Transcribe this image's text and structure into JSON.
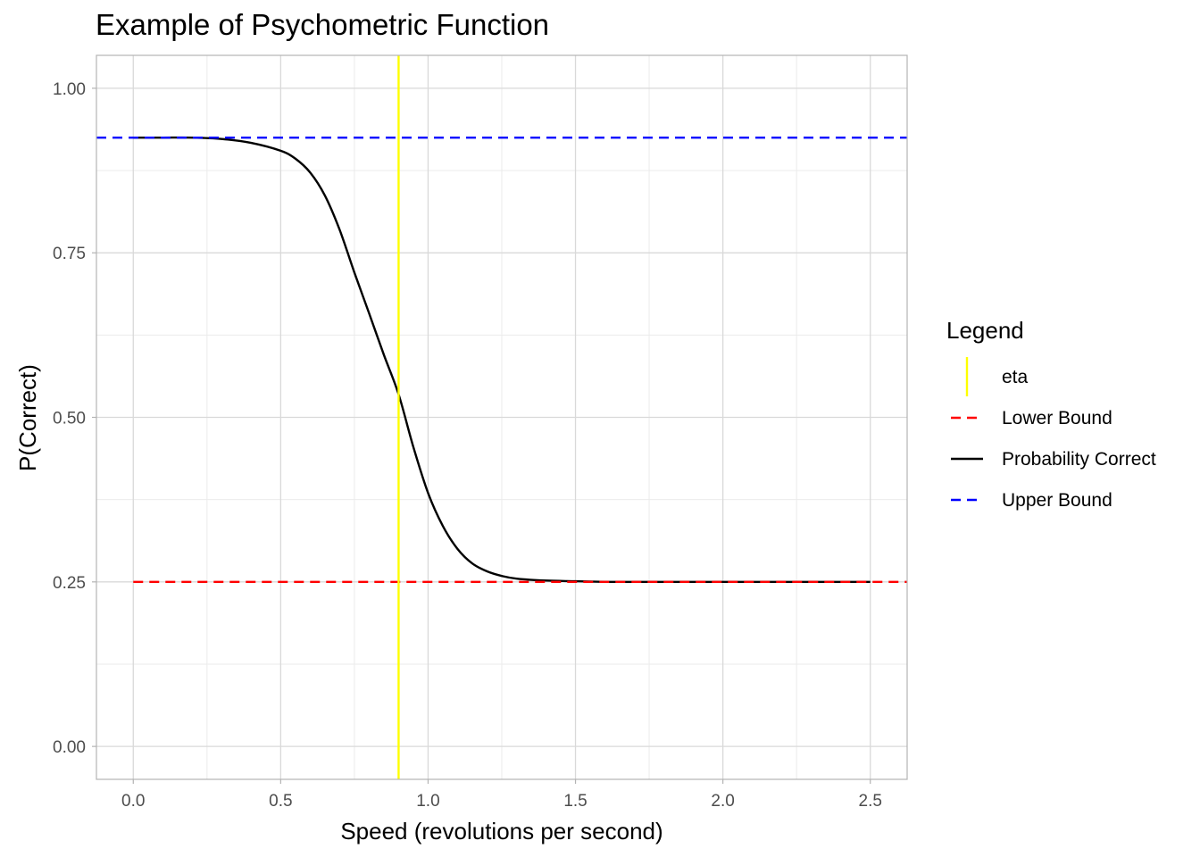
{
  "chart_data": {
    "type": "line",
    "title": "Example of Psychometric Function",
    "xlabel": "Speed (revolutions per second)",
    "ylabel": "P(Correct)",
    "xlim": [
      -0.125,
      2.625
    ],
    "ylim": [
      -0.05,
      1.05
    ],
    "x_ticks": [
      0.0,
      0.5,
      1.0,
      1.5,
      2.0,
      2.5
    ],
    "x_tick_labels": [
      "0.0",
      "0.5",
      "1.0",
      "1.5",
      "2.0",
      "2.5"
    ],
    "y_ticks": [
      0.0,
      0.25,
      0.5,
      0.75,
      1.0
    ],
    "y_tick_labels": [
      "0.00",
      "0.25",
      "0.50",
      "0.75",
      "1.00"
    ],
    "grid": true,
    "legend": {
      "title": "Legend",
      "placement": "right",
      "entries": [
        "eta",
        "Lower Bound",
        "Probability Correct",
        "Upper Bound"
      ]
    },
    "series": [
      {
        "name": "Probability Correct",
        "color": "#000000",
        "style": "solid",
        "x": [
          0.0,
          0.1,
          0.2,
          0.3,
          0.4,
          0.5,
          0.55,
          0.6,
          0.65,
          0.7,
          0.75,
          0.8,
          0.85,
          0.9,
          0.95,
          1.0,
          1.05,
          1.1,
          1.15,
          1.2,
          1.25,
          1.3,
          1.4,
          1.5,
          1.6,
          1.8,
          2.0,
          2.2,
          2.5
        ],
        "y": [
          0.925,
          0.925,
          0.925,
          0.923,
          0.917,
          0.905,
          0.893,
          0.872,
          0.837,
          0.785,
          0.72,
          0.658,
          0.595,
          0.535,
          0.455,
          0.385,
          0.335,
          0.3,
          0.278,
          0.266,
          0.259,
          0.255,
          0.252,
          0.251,
          0.25,
          0.25,
          0.25,
          0.25,
          0.25
        ]
      },
      {
        "name": "Upper Bound",
        "color": "#0000ff",
        "style": "dashed",
        "y_constant": 0.925
      },
      {
        "name": "Lower Bound",
        "color": "#ff0000",
        "style": "dashed",
        "y_constant": 0.25
      },
      {
        "name": "eta",
        "color": "#ffff00",
        "style": "solid",
        "x_constant": 0.9
      }
    ]
  }
}
